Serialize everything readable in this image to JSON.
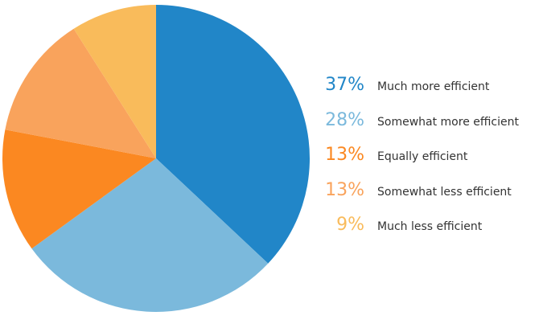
{
  "chart_data": {
    "type": "pie",
    "title": "",
    "start_angle_deg": -90,
    "direction": "clockwise",
    "legend_position": "right",
    "label_color": "#333333",
    "background_color": "#ffffff",
    "slices": [
      {
        "label": "Much more efficient",
        "value": 37,
        "pct_label": "37%",
        "color": "#2186C8"
      },
      {
        "label": "Somewhat more efficient",
        "value": 28,
        "pct_label": "28%",
        "color": "#7BB9DC"
      },
      {
        "label": "Equally efficient",
        "value": 13,
        "pct_label": "13%",
        "color": "#FB8821"
      },
      {
        "label": "Somewhat less efficient",
        "value": 13,
        "pct_label": "13%",
        "color": "#F9A35C"
      },
      {
        "label": "Much less efficient",
        "value": 9,
        "pct_label": "9%",
        "color": "#F9BB5B"
      }
    ]
  }
}
